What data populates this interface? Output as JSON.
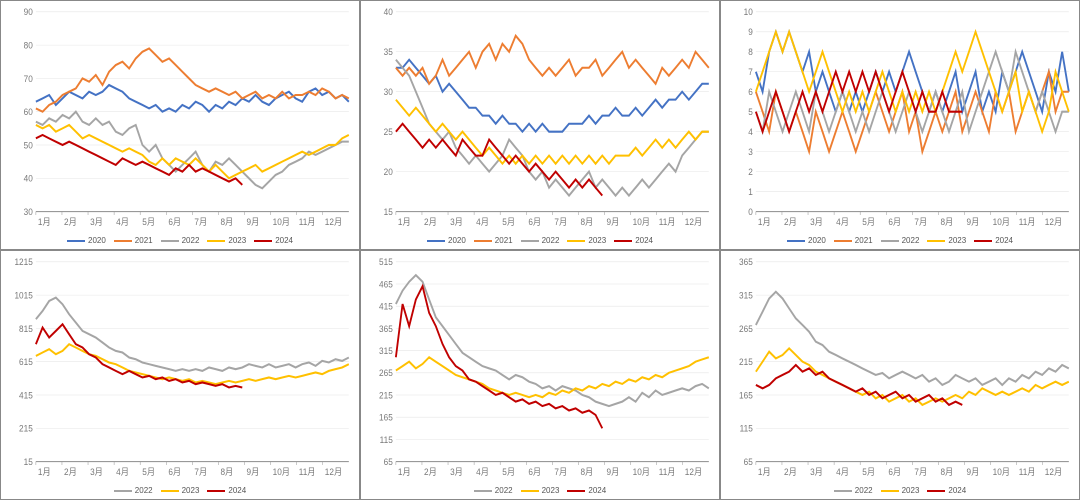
{
  "global": {
    "background_color": "#ffffff",
    "grid_color": "#e6e6e6",
    "axis_color": "#999999",
    "label_color": "#777777",
    "label_fontsize": 8,
    "line_width": 1.8,
    "font_family": "Arial",
    "x_categories": [
      "1月",
      "2月",
      "3月",
      "4月",
      "5月",
      "6月",
      "7月",
      "8月",
      "9月",
      "10月",
      "11月",
      "12月"
    ],
    "colors": {
      "2020": "#4472c4",
      "2021": "#ed7d31",
      "2022": "#a5a5a5",
      "2023": "#ffc000",
      "2024": "#c00000"
    }
  },
  "panels": [
    {
      "id": "p00",
      "type": "line",
      "ylim": [
        30,
        90
      ],
      "ytick_step": 10,
      "legend_series": [
        "2020",
        "2021",
        "2022",
        "2023",
        "2024"
      ],
      "series": {
        "2020": [
          63,
          64,
          65,
          62,
          64,
          66,
          65,
          64,
          66,
          65,
          66,
          68,
          67,
          66,
          64,
          63,
          62,
          61,
          62,
          60,
          61,
          60,
          62,
          61,
          63,
          62,
          60,
          62,
          61,
          63,
          62,
          64,
          63,
          65,
          63,
          62,
          64,
          65,
          66,
          64,
          63,
          66,
          67,
          65,
          66,
          64,
          65,
          63
        ],
        "2021": [
          61,
          60,
          62,
          63,
          65,
          66,
          67,
          70,
          69,
          71,
          68,
          72,
          74,
          75,
          73,
          76,
          78,
          79,
          77,
          75,
          76,
          74,
          72,
          70,
          68,
          67,
          66,
          67,
          66,
          65,
          66,
          64,
          65,
          66,
          64,
          65,
          64,
          66,
          64,
          65,
          65,
          66,
          65,
          67,
          66,
          64,
          65,
          64
        ],
        "2022": [
          57,
          56,
          58,
          57,
          59,
          58,
          60,
          57,
          56,
          58,
          56,
          57,
          54,
          53,
          55,
          56,
          50,
          48,
          50,
          46,
          44,
          42,
          44,
          46,
          48,
          44,
          42,
          45,
          44,
          46,
          44,
          42,
          40,
          38,
          37,
          39,
          41,
          42,
          44,
          45,
          46,
          48,
          47,
          48,
          49,
          50,
          51,
          51
        ],
        "2023": [
          56,
          55,
          56,
          54,
          55,
          56,
          54,
          52,
          53,
          52,
          51,
          50,
          49,
          48,
          49,
          48,
          47,
          45,
          44,
          46,
          44,
          46,
          45,
          44,
          46,
          44,
          42,
          44,
          42,
          40,
          41,
          42,
          43,
          44,
          42,
          43,
          44,
          45,
          46,
          47,
          48,
          47,
          48,
          49,
          50,
          50,
          52,
          53
        ],
        "2024": [
          52,
          53,
          52,
          51,
          50,
          51,
          50,
          49,
          48,
          47,
          46,
          45,
          44,
          46,
          45,
          44,
          45,
          44,
          43,
          42,
          41,
          43,
          42,
          44,
          42,
          43,
          42,
          41,
          40,
          39,
          40,
          38
        ]
      }
    },
    {
      "id": "p01",
      "type": "line",
      "ylim": [
        15,
        40
      ],
      "ytick_step": 5,
      "legend_series": [
        "2020",
        "2021",
        "2022",
        "2023",
        "2024"
      ],
      "series": {
        "2020": [
          33,
          33,
          34,
          33,
          32,
          31,
          32,
          30,
          31,
          30,
          29,
          28,
          28,
          27,
          27,
          26,
          27,
          26,
          26,
          25,
          26,
          25,
          26,
          25,
          25,
          25,
          26,
          26,
          26,
          27,
          26,
          27,
          27,
          28,
          27,
          27,
          28,
          27,
          28,
          29,
          28,
          29,
          29,
          30,
          29,
          30,
          31,
          31
        ],
        "2021": [
          33,
          32,
          33,
          32,
          33,
          31,
          32,
          34,
          32,
          33,
          34,
          35,
          33,
          35,
          36,
          34,
          36,
          35,
          37,
          36,
          34,
          33,
          32,
          33,
          32,
          33,
          34,
          32,
          33,
          33,
          34,
          32,
          33,
          34,
          35,
          33,
          34,
          33,
          32,
          31,
          33,
          32,
          33,
          34,
          33,
          35,
          34,
          33
        ],
        "2022": [
          34,
          33,
          32,
          30,
          28,
          26,
          25,
          24,
          25,
          23,
          22,
          21,
          22,
          21,
          20,
          21,
          22,
          24,
          23,
          22,
          20,
          19,
          20,
          18,
          19,
          18,
          17,
          18,
          19,
          20,
          18,
          19,
          18,
          17,
          18,
          17,
          18,
          19,
          18,
          19,
          20,
          21,
          20,
          22,
          23,
          24,
          25,
          25
        ],
        "2023": [
          29,
          28,
          27,
          28,
          27,
          26,
          25,
          26,
          25,
          24,
          25,
          24,
          23,
          22,
          23,
          22,
          21,
          22,
          21,
          22,
          21,
          22,
          21,
          22,
          21,
          22,
          21,
          22,
          21,
          22,
          21,
          22,
          21,
          22,
          22,
          22,
          23,
          22,
          23,
          24,
          23,
          24,
          23,
          24,
          25,
          24,
          25,
          25
        ],
        "2024": [
          25,
          26,
          25,
          24,
          23,
          24,
          23,
          24,
          23,
          22,
          24,
          23,
          22,
          22,
          24,
          23,
          22,
          21,
          22,
          21,
          20,
          21,
          20,
          19,
          20,
          19,
          18,
          19,
          18,
          19,
          18,
          17
        ]
      }
    },
    {
      "id": "p02",
      "type": "line",
      "ylim": [
        0,
        10
      ],
      "ytick_step": 1,
      "legend_series": [
        "2020",
        "2021",
        "2022",
        "2023",
        "2024"
      ],
      "series": {
        "2020": [
          7,
          6,
          8,
          9,
          8,
          9,
          8,
          7,
          8,
          6,
          7,
          6,
          5,
          6,
          5,
          6,
          5,
          6,
          7,
          6,
          7,
          6,
          7,
          8,
          7,
          6,
          5,
          6,
          5,
          6,
          7,
          5,
          6,
          7,
          5,
          6,
          5,
          7,
          6,
          7,
          8,
          7,
          6,
          5,
          7,
          6,
          8,
          6
        ],
        "2021": [
          6,
          5,
          4,
          6,
          5,
          4,
          5,
          4,
          3,
          5,
          4,
          3,
          4,
          5,
          4,
          3,
          4,
          5,
          6,
          5,
          4,
          5,
          6,
          4,
          5,
          3,
          4,
          5,
          4,
          5,
          6,
          4,
          5,
          6,
          5,
          4,
          6,
          5,
          6,
          4,
          5,
          6,
          5,
          6,
          7,
          5,
          6,
          6
        ],
        "2022": [
          5,
          4,
          6,
          5,
          4,
          5,
          6,
          5,
          4,
          6,
          5,
          4,
          5,
          6,
          5,
          4,
          5,
          4,
          5,
          6,
          5,
          4,
          5,
          6,
          5,
          4,
          5,
          6,
          5,
          4,
          5,
          6,
          4,
          5,
          6,
          7,
          8,
          7,
          6,
          8,
          7,
          6,
          5,
          6,
          5,
          4,
          5,
          5
        ],
        "2023": [
          6,
          7,
          8,
          9,
          8,
          9,
          8,
          7,
          6,
          7,
          8,
          7,
          6,
          5,
          6,
          5,
          6,
          5,
          6,
          7,
          6,
          5,
          6,
          5,
          6,
          5,
          6,
          5,
          6,
          7,
          8,
          7,
          8,
          9,
          8,
          7,
          6,
          5,
          6,
          7,
          5,
          6,
          5,
          4,
          5,
          7,
          6,
          5
        ],
        "2024": [
          5,
          4,
          5,
          6,
          5,
          4,
          5,
          6,
          5,
          6,
          5,
          6,
          7,
          6,
          7,
          6,
          7,
          6,
          7,
          6,
          5,
          6,
          7,
          6,
          5,
          6,
          5,
          5,
          6,
          5,
          5,
          5
        ]
      }
    },
    {
      "id": "p10",
      "type": "line",
      "ylim": [
        15,
        1215
      ],
      "ytick_step": 200,
      "legend_series": [
        "2022",
        "2023",
        "2024"
      ],
      "series": {
        "2022": [
          870,
          920,
          980,
          1000,
          960,
          900,
          850,
          800,
          780,
          760,
          730,
          700,
          680,
          670,
          640,
          630,
          610,
          600,
          590,
          580,
          570,
          560,
          570,
          560,
          570,
          560,
          580,
          570,
          560,
          580,
          570,
          580,
          600,
          590,
          580,
          600,
          580,
          590,
          600,
          580,
          600,
          610,
          590,
          620,
          610,
          630,
          620,
          640
        ],
        "2023": [
          650,
          670,
          690,
          660,
          680,
          720,
          700,
          680,
          660,
          650,
          630,
          610,
          600,
          580,
          560,
          550,
          540,
          530,
          520,
          510,
          520,
          510,
          500,
          510,
          490,
          500,
          490,
          480,
          490,
          500,
          490,
          500,
          510,
          500,
          510,
          520,
          510,
          520,
          530,
          520,
          530,
          540,
          550,
          540,
          560,
          570,
          580,
          600
        ],
        "2024": [
          720,
          820,
          760,
          800,
          840,
          780,
          720,
          700,
          660,
          640,
          600,
          580,
          560,
          540,
          560,
          540,
          520,
          530,
          510,
          520,
          500,
          510,
          490,
          500,
          480,
          490,
          480,
          470,
          480,
          460,
          470,
          460
        ]
      }
    },
    {
      "id": "p11",
      "type": "line",
      "ylim": [
        65,
        515
      ],
      "ytick_step": 50,
      "legend_series": [
        "2022",
        "2023",
        "2024"
      ],
      "series": {
        "2022": [
          420,
          450,
          470,
          485,
          470,
          430,
          390,
          370,
          350,
          330,
          310,
          300,
          290,
          280,
          275,
          270,
          260,
          250,
          260,
          255,
          245,
          240,
          230,
          235,
          225,
          235,
          230,
          225,
          215,
          210,
          200,
          195,
          190,
          195,
          200,
          210,
          200,
          220,
          210,
          225,
          215,
          220,
          225,
          230,
          225,
          235,
          240,
          230
        ],
        "2023": [
          270,
          280,
          290,
          275,
          285,
          300,
          290,
          280,
          270,
          260,
          255,
          250,
          245,
          240,
          230,
          225,
          220,
          215,
          220,
          215,
          210,
          215,
          210,
          220,
          215,
          225,
          220,
          230,
          225,
          235,
          230,
          240,
          235,
          245,
          240,
          250,
          245,
          255,
          250,
          260,
          255,
          265,
          270,
          275,
          280,
          290,
          295,
          300
        ],
        "2024": [
          300,
          420,
          370,
          430,
          460,
          400,
          370,
          330,
          300,
          280,
          270,
          250,
          245,
          235,
          225,
          215,
          220,
          210,
          200,
          205,
          195,
          200,
          190,
          195,
          185,
          190,
          180,
          185,
          175,
          180,
          170,
          140
        ]
      }
    },
    {
      "id": "p12",
      "type": "line",
      "ylim": [
        65,
        365
      ],
      "ytick_step": 50,
      "legend_series": [
        "2022",
        "2023",
        "2024"
      ],
      "series": {
        "2022": [
          270,
          290,
          310,
          320,
          310,
          295,
          280,
          270,
          260,
          245,
          240,
          230,
          225,
          220,
          215,
          210,
          205,
          200,
          195,
          198,
          190,
          195,
          200,
          195,
          190,
          195,
          185,
          190,
          180,
          185,
          195,
          190,
          185,
          190,
          180,
          185,
          190,
          180,
          190,
          185,
          195,
          190,
          200,
          195,
          205,
          200,
          210,
          205
        ],
        "2023": [
          200,
          215,
          230,
          220,
          225,
          235,
          225,
          215,
          210,
          200,
          195,
          190,
          185,
          180,
          175,
          170,
          165,
          170,
          160,
          165,
          155,
          160,
          165,
          155,
          160,
          150,
          155,
          160,
          155,
          160,
          165,
          160,
          170,
          165,
          175,
          170,
          165,
          170,
          165,
          170,
          175,
          170,
          180,
          175,
          180,
          185,
          180,
          185
        ],
        "2024": [
          180,
          175,
          180,
          190,
          195,
          200,
          210,
          200,
          205,
          195,
          200,
          190,
          185,
          180,
          175,
          170,
          175,
          165,
          170,
          160,
          165,
          170,
          160,
          165,
          155,
          160,
          165,
          155,
          160,
          150,
          155,
          150
        ]
      }
    }
  ]
}
